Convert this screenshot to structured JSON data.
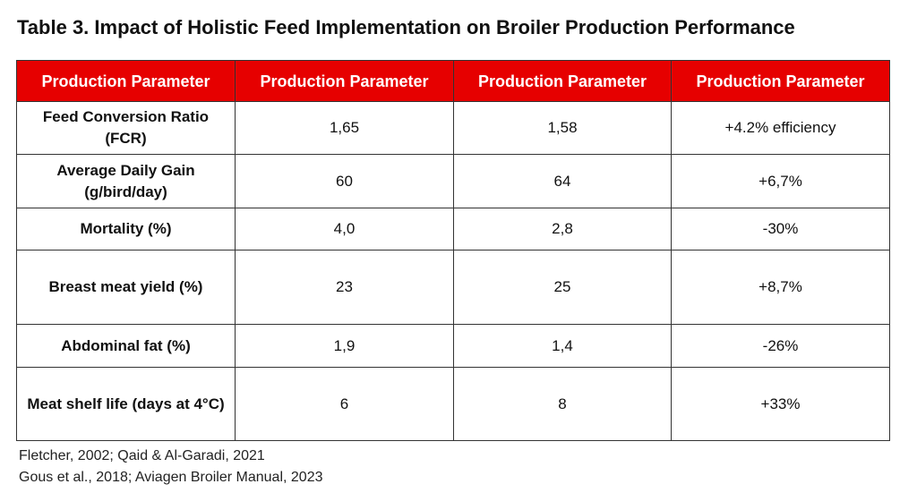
{
  "title": "Table 3. Impact of Holistic Feed Implementation on Broiler Production Performance",
  "table": {
    "headers": [
      "Production Parameter",
      "Production Parameter",
      "Production Parameter",
      "Production Parameter"
    ],
    "rows": [
      [
        "Feed Conversion Ratio (FCR)",
        "1,65",
        "1,58",
        "+4.2% efficiency"
      ],
      [
        "Average Daily Gain (g/bird/day)",
        "60",
        "64",
        "+6,7%"
      ],
      [
        "Mortality (%)",
        "4,0",
        "2,8",
        "-30%"
      ],
      [
        "Breast meat yield (%)",
        "23",
        "25",
        "+8,7%"
      ],
      [
        "Abdominal fat (%)",
        "1,9",
        "1,4",
        "-26%"
      ],
      [
        "Meat shelf life (days at 4°C)",
        "6",
        "8",
        "+33%"
      ]
    ]
  },
  "sources": [
    "Fletcher, 2002; Qaid & Al-Garadi, 2021",
    "Gous et al., 2018; Aviagen Broiler Manual, 2023"
  ],
  "colors": {
    "header_background": "#e60000",
    "header_text": "#ffffff"
  }
}
